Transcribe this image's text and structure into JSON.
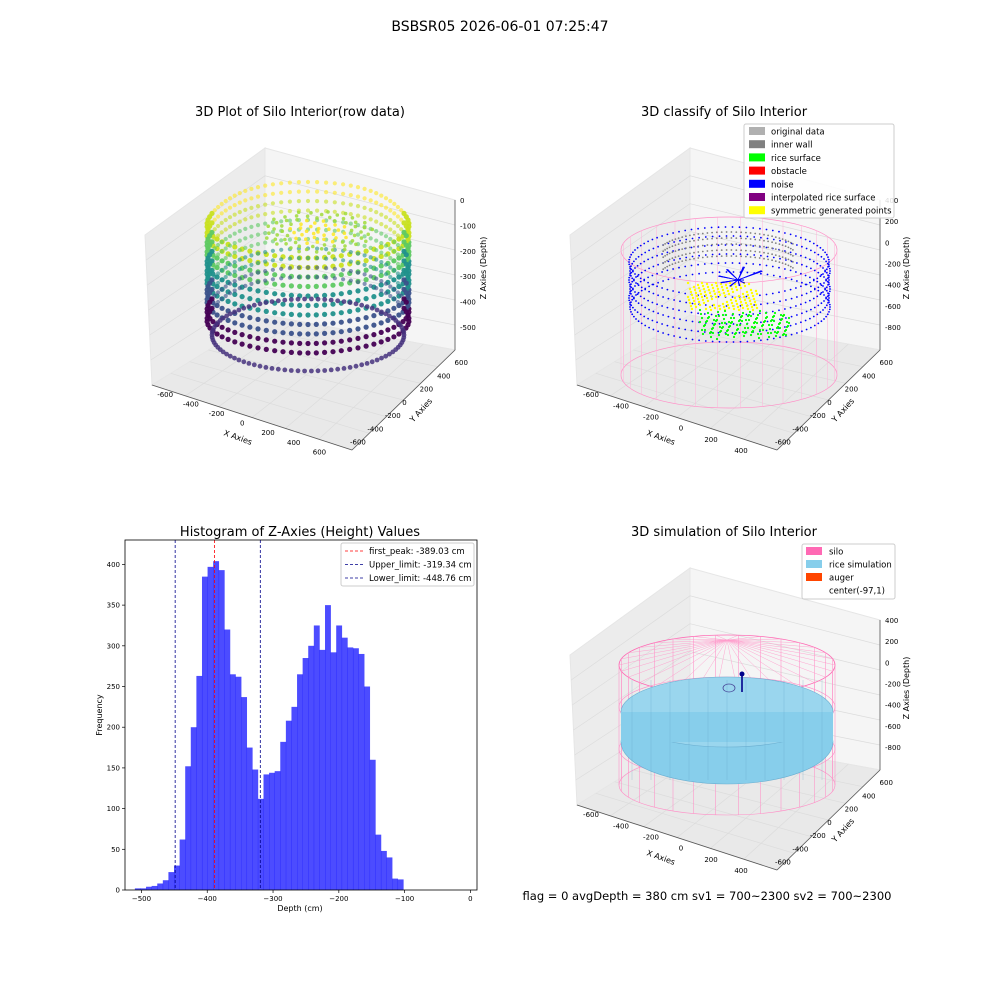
{
  "figure": {
    "suptitle": "BSBSR05 2026-06-01 07:25:47",
    "footer": "flag = 0     avgDepth = 380 cm  sv1 = 700~2300  sv2 = 700~2300"
  },
  "panels": {
    "raw": {
      "title": "3D Plot of Silo Interior(row data)",
      "xlabel": "X Axies",
      "ylabel": "Y Axies",
      "zlabel": "Z Axies (Depth)",
      "xticks": [
        "-600",
        "-400",
        "-200",
        "0",
        "200",
        "400",
        "600"
      ],
      "yticks": [
        "-600",
        "-400",
        "-200",
        "0",
        "200",
        "400",
        "600"
      ],
      "zticks": [
        "0",
        "-100",
        "-200",
        "-300",
        "-400",
        "-500"
      ]
    },
    "classify": {
      "title": "3D classify of Silo Interior",
      "xlabel": "X Axies",
      "ylabel": "Y Axies",
      "zlabel": "Z Axies (Depth)",
      "xticks": [
        "-600",
        "-400",
        "-200",
        "0",
        "200",
        "400"
      ],
      "yticks": [
        "-600",
        "-400",
        "-200",
        "0",
        "200",
        "400",
        "600"
      ],
      "zticks": [
        "400",
        "200",
        "0",
        "-200",
        "-400",
        "-600",
        "-800"
      ],
      "legend": [
        {
          "label": "original data",
          "color": "#b0b0b0"
        },
        {
          "label": "inner wall",
          "color": "#808080"
        },
        {
          "label": "rice surface",
          "color": "#00ff00"
        },
        {
          "label": "obstacle",
          "color": "#ff0000"
        },
        {
          "label": "noise",
          "color": "#0000ff"
        },
        {
          "label": "interpolated rice surface",
          "color": "#800080"
        },
        {
          "label": "symmetric generated points",
          "color": "#ffff00"
        }
      ]
    },
    "simulation": {
      "title": "3D simulation of Silo Interior",
      "xlabel": "X Axies",
      "ylabel": "Y Axies",
      "zlabel": "Z Axies (Depth)",
      "xticks": [
        "-600",
        "-400",
        "-200",
        "0",
        "200",
        "400"
      ],
      "yticks": [
        "-600",
        "-400",
        "-200",
        "0",
        "200",
        "400",
        "600"
      ],
      "zticks": [
        "400",
        "200",
        "0",
        "-200",
        "-400",
        "-600",
        "-800"
      ],
      "legend": [
        {
          "label": "silo",
          "color": "#ff69b4"
        },
        {
          "label": "rice simulation",
          "color": "#87ceeb"
        },
        {
          "label": "auger",
          "color": "#ff4500"
        },
        {
          "label": "center(-97,1)",
          "color": "#ffffff"
        }
      ]
    }
  },
  "chart_data": {
    "type": "bar",
    "title": "Histogram of Z-Axies (Height) Values",
    "xlabel": "Depth (cm)",
    "ylabel": "Frequency",
    "xlim": [
      -525,
      10
    ],
    "ylim": [
      0,
      430
    ],
    "xticks": [
      -500,
      -400,
      -300,
      -200,
      -100,
      0
    ],
    "yticks": [
      0,
      50,
      100,
      150,
      200,
      250,
      300,
      350,
      400
    ],
    "bar_color": "#0000ff",
    "bin_start": -510,
    "bin_width": 8.5,
    "values": [
      2,
      2,
      4,
      5,
      8,
      12,
      22,
      30,
      62,
      152,
      200,
      263,
      385,
      397,
      404,
      393,
      320,
      265,
      262,
      237,
      175,
      148,
      112,
      142,
      144,
      146,
      182,
      208,
      225,
      265,
      285,
      300,
      325,
      295,
      350,
      292,
      325,
      310,
      298,
      297,
      290,
      250,
      160,
      68,
      48,
      40,
      14,
      13
    ],
    "vlines": [
      {
        "x": -389.03,
        "color": "#ff0000",
        "label": "first_peak: -389.03 cm"
      },
      {
        "x": -319.34,
        "color": "#00008b",
        "label": "Upper_limit: -319.34 cm"
      },
      {
        "x": -448.76,
        "color": "#00008b",
        "label": "Lower_limit: -448.76 cm"
      }
    ],
    "legend_position": "top-right"
  }
}
